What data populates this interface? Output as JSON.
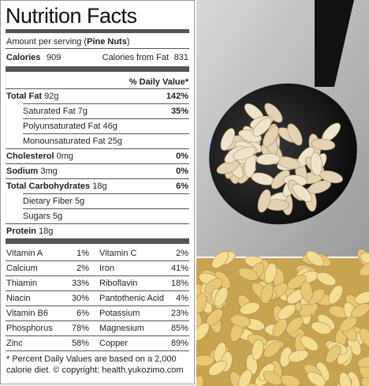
{
  "title": "Nutrition Facts",
  "serving": {
    "prefix": "Amount per serving (",
    "food": "Pine Nuts",
    "suffix": ")"
  },
  "calories": {
    "label": "Calories",
    "value": "909",
    "fat_label": "Calories from Fat",
    "fat_value": "831"
  },
  "dv_header": "% Daily Value*",
  "nutrients": [
    {
      "label": "Total Fat",
      "amount": "92g",
      "dv": "142%",
      "sub": false
    },
    {
      "label": "Saturated Fat",
      "amount": "7g",
      "dv": "35%",
      "sub": true
    },
    {
      "label": "Polyunsaturated Fat",
      "amount": "46g",
      "sub": true
    },
    {
      "label": "Monounsaturated Fat",
      "amount": "25g",
      "sub": true
    },
    {
      "label": "Cholesterol",
      "amount": "0mg",
      "dv": "0%",
      "sub": false
    },
    {
      "label": "Sodium",
      "amount": "3mg",
      "dv": "0%",
      "sub": false
    },
    {
      "label": "Total Carbohydrates",
      "amount": "18g",
      "dv": "6%",
      "sub": false
    },
    {
      "label": "Dietary Fiber",
      "amount": "5g",
      "sub": true
    },
    {
      "label": "Sugars",
      "amount": "5g",
      "sub": true
    },
    {
      "label": "Protein",
      "amount": "18g",
      "sub": false
    }
  ],
  "vitamins": [
    [
      {
        "name": "Vitamin A",
        "dv": "1%"
      },
      {
        "name": "Vitamin C",
        "dv": "2%"
      }
    ],
    [
      {
        "name": "Calcium",
        "dv": "2%"
      },
      {
        "name": "Iron",
        "dv": "41%"
      }
    ],
    [
      {
        "name": "Thiamin",
        "dv": "33%"
      },
      {
        "name": "Riboflavin",
        "dv": "18%"
      }
    ],
    [
      {
        "name": "Niacin",
        "dv": "30%"
      },
      {
        "name": "Pantothenic Acid",
        "dv": "4%"
      }
    ],
    [
      {
        "name": "Vitamin B6",
        "dv": "6%"
      },
      {
        "name": "Potassium",
        "dv": "23%"
      }
    ],
    [
      {
        "name": "Phosphorus",
        "dv": "78%"
      },
      {
        "name": "Magnesium",
        "dv": "85%"
      }
    ],
    [
      {
        "name": "Zinc",
        "dv": "58%"
      },
      {
        "name": "Copper",
        "dv": "89%"
      }
    ]
  ],
  "footnote": [
    "* Percent Daily Values are based on a 2,000",
    "calorie diet. © copyright: health.yukozimo.com"
  ]
}
